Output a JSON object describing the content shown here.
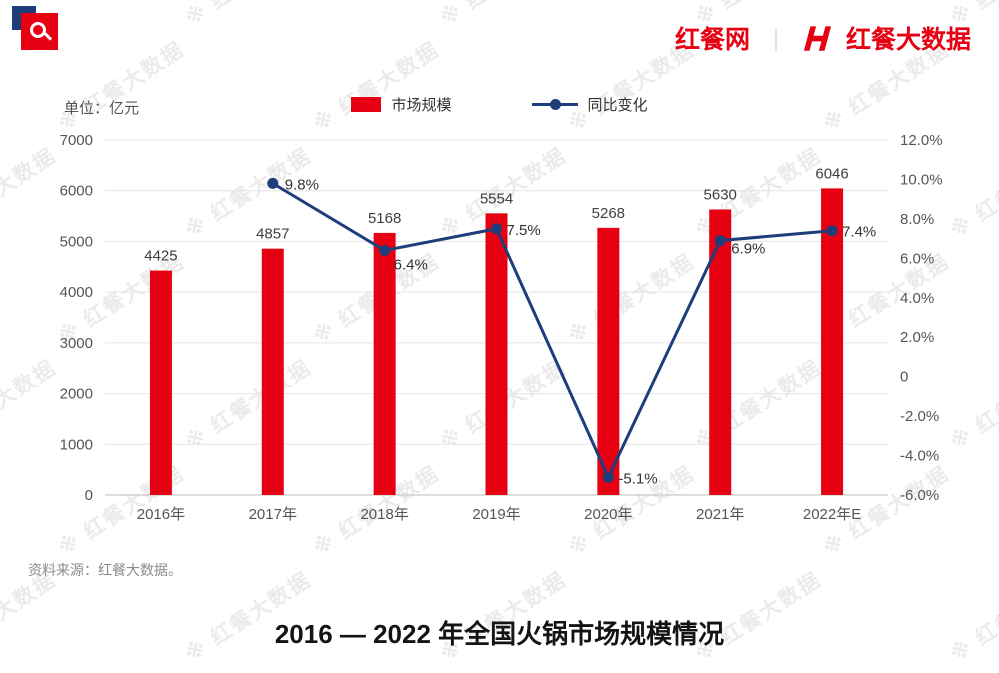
{
  "header": {
    "brand_left": "红餐网",
    "divider": "｜",
    "brand_right": "红餐大数据"
  },
  "watermark": {
    "mark": "※",
    "text": "红餐大数据"
  },
  "chart_data": {
    "type": "bar+line",
    "title": "2016 — 2022 年全国火锅市场规模情况",
    "unit_label": "单位：亿元",
    "categories": [
      "2016年",
      "2017年",
      "2018年",
      "2019年",
      "2020年",
      "2021年",
      "2022年E"
    ],
    "series": [
      {
        "name": "市场规模",
        "type": "bar",
        "axis": "left",
        "color": "#e60012",
        "values": [
          4425,
          4857,
          5168,
          5554,
          5268,
          5630,
          6046
        ]
      },
      {
        "name": "同比变化",
        "type": "line",
        "axis": "right",
        "color": "#1e3d7b",
        "values": [
          null,
          9.8,
          6.4,
          7.5,
          -5.1,
          6.9,
          7.4
        ],
        "labels": [
          "",
          "9.8%",
          "6.4%",
          "7.5%",
          "-5.1%",
          "6.9%",
          "7.4%"
        ]
      }
    ],
    "left_axis": {
      "min": 0,
      "max": 7000,
      "step": 1000,
      "tick_labels": [
        "0",
        "1000",
        "2000",
        "3000",
        "4000",
        "5000",
        "6000",
        "7000"
      ]
    },
    "right_axis": {
      "min": -6,
      "max": 12,
      "step": 2,
      "tick_labels": [
        "12.0%",
        "10.0%",
        "8.0%",
        "6.0%",
        "4.0%",
        "2.0%",
        "0",
        "-2.0%",
        "-4.0%",
        "-6.0%"
      ]
    },
    "grid": true,
    "legend_position": "top-center"
  },
  "footer": {
    "source": "资料来源：红餐大数据。"
  },
  "title": "2016 — 2022 年全国火锅市场规模情况"
}
